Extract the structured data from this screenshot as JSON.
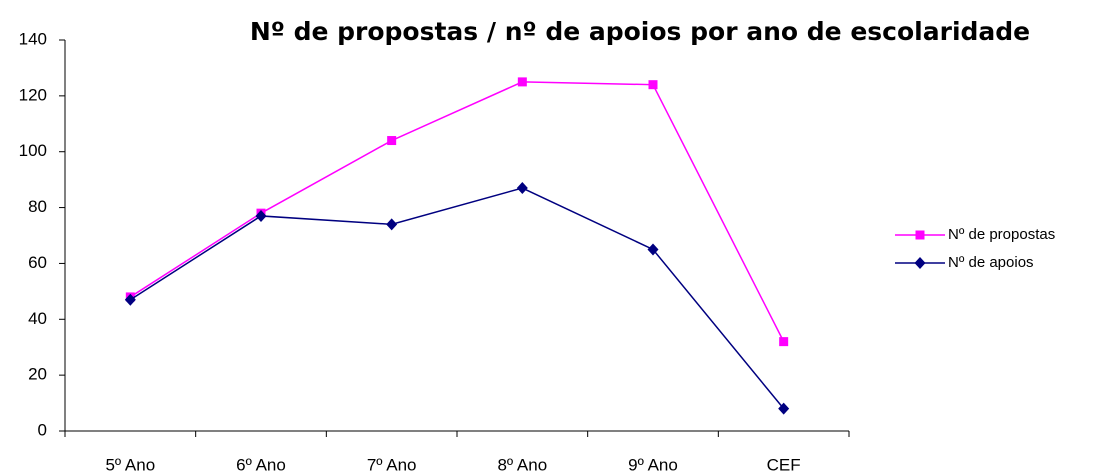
{
  "chart_data": {
    "type": "line",
    "title": "Nº de propostas / nº de apoios por ano de escolaridade",
    "categories": [
      "5º Ano",
      "6º Ano",
      "7º Ano",
      "8º Ano",
      "9º Ano",
      "CEF"
    ],
    "series": [
      {
        "name": "Nº de propostas",
        "color": "#ff00ff",
        "marker": "square",
        "values": [
          48,
          78,
          104,
          125,
          124,
          32
        ]
      },
      {
        "name": "Nº de apoios",
        "color": "#000080",
        "marker": "diamond",
        "values": [
          47,
          77,
          74,
          87,
          65,
          8
        ]
      }
    ],
    "ylim": [
      0,
      140
    ],
    "yticks": [
      0,
      20,
      40,
      60,
      80,
      100,
      120,
      140
    ],
    "grid": false,
    "legend": "right"
  }
}
